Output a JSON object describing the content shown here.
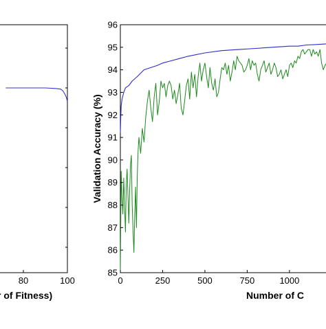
{
  "chart_data": [
    {
      "type": "line",
      "xlabel": "r of Fitness)",
      "x_ticks": [
        80,
        100
      ],
      "xlim": [
        72,
        100
      ],
      "series": [
        {
          "color": "#3333cc",
          "x": [
            72,
            80,
            90,
            95,
            97,
            98,
            99,
            99.5,
            100
          ],
          "y": [
            0.56,
            0.56,
            0.56,
            0.559,
            0.558,
            0.555,
            0.549,
            0.545,
            0.538
          ]
        }
      ]
    },
    {
      "type": "line",
      "ylabel": "Validation Accuracy (%)",
      "xlabel": "Number of C",
      "xlim": [
        0,
        1220
      ],
      "ylim": [
        85,
        96
      ],
      "x_ticks": [
        0,
        250,
        500,
        750,
        1000
      ],
      "x_tick_labels": [
        "0",
        "250",
        "500",
        "750",
        "1000"
      ],
      "y_ticks": [
        85,
        86,
        87,
        88,
        89,
        90,
        91,
        92,
        93,
        94,
        95,
        96
      ],
      "y_tick_labels": [
        "85",
        "86",
        "87",
        "88",
        "89",
        "90",
        "91",
        "92",
        "93",
        "94",
        "95",
        "96"
      ],
      "series": [
        {
          "color": "#2b2bc8",
          "x": [
            0,
            2,
            5,
            10,
            20,
            30,
            50,
            70,
            100,
            140,
            180,
            220,
            250,
            300,
            350,
            400,
            500,
            600,
            700,
            800,
            900,
            1000,
            1050,
            1100,
            1150,
            1220
          ],
          "y": [
            91.2,
            91.8,
            92.4,
            92.7,
            93.0,
            93.2,
            93.3,
            93.5,
            93.7,
            94.0,
            94.1,
            94.2,
            94.3,
            94.4,
            94.5,
            94.6,
            94.75,
            94.85,
            94.9,
            94.95,
            95.0,
            95.05,
            95.05,
            95.1,
            95.12,
            95.15
          ]
        },
        {
          "color": "#1a8a1a",
          "x": [
            0,
            5,
            10,
            15,
            20,
            25,
            30,
            35,
            40,
            45,
            50,
            55,
            60,
            65,
            70,
            75,
            80,
            85,
            90,
            95,
            100,
            105,
            110,
            120,
            130,
            140,
            150,
            160,
            170,
            180,
            190,
            200,
            210,
            220,
            230,
            240,
            250,
            260,
            270,
            280,
            290,
            300,
            310,
            320,
            330,
            340,
            350,
            360,
            370,
            380,
            390,
            400,
            410,
            420,
            430,
            440,
            450,
            460,
            470,
            480,
            490,
            500,
            510,
            520,
            530,
            540,
            550,
            560,
            570,
            580,
            590,
            600,
            610,
            620,
            630,
            640,
            650,
            660,
            670,
            680,
            690,
            700,
            710,
            720,
            730,
            740,
            750,
            760,
            770,
            780,
            790,
            800,
            810,
            820,
            830,
            840,
            850,
            860,
            870,
            880,
            890,
            900,
            910,
            920,
            930,
            940,
            950,
            960,
            970,
            980,
            990,
            1000,
            1010,
            1020,
            1030,
            1040,
            1050,
            1060,
            1070,
            1080,
            1090,
            1100,
            1110,
            1120,
            1130,
            1140,
            1150,
            1160,
            1170,
            1180,
            1190,
            1200,
            1210,
            1220
          ],
          "y": [
            85.0,
            89.5,
            88.2,
            87.6,
            89.2,
            88.0,
            86.8,
            88.9,
            89.6,
            88.4,
            87.2,
            88.6,
            89.8,
            90.2,
            88.0,
            86.9,
            85.9,
            87.5,
            88.8,
            87.0,
            89.3,
            90.4,
            91.0,
            90.3,
            91.4,
            90.8,
            91.9,
            92.6,
            93.1,
            92.3,
            91.7,
            92.8,
            93.4,
            92.0,
            92.6,
            93.5,
            93.2,
            93.4,
            92.8,
            93.3,
            93.5,
            93.3,
            92.7,
            93.1,
            92.5,
            92.9,
            93.4,
            92.3,
            92.0,
            92.6,
            93.3,
            93.6,
            92.7,
            93.9,
            93.2,
            93.8,
            92.8,
            93.7,
            94.3,
            93.5,
            94.0,
            94.3,
            93.7,
            93.2,
            94.1,
            93.4,
            93.1,
            93.6,
            92.8,
            93.0,
            93.6,
            94.1,
            94.0,
            94.3,
            93.8,
            94.2,
            93.5,
            93.9,
            94.4,
            94.0,
            94.6,
            94.4,
            94.3,
            94.2,
            93.9,
            94.0,
            94.2,
            94.5,
            94.0,
            94.4,
            94.2,
            94.3,
            93.8,
            93.5,
            94.0,
            94.2,
            94.4,
            93.9,
            94.1,
            94.3,
            93.8,
            94.0,
            94.3,
            94.1,
            93.7,
            93.8,
            94.0,
            93.6,
            93.8,
            94.0,
            93.7,
            94.2,
            94.3,
            94.1,
            94.4,
            94.3,
            94.6,
            94.5,
            94.8,
            94.9,
            94.7,
            94.8,
            94.9,
            94.9,
            94.6,
            94.9,
            94.7,
            94.8,
            94.6,
            94.9,
            94.3,
            94.0,
            94.2,
            94.3
          ]
        }
      ]
    }
  ],
  "colors": {
    "blue_line": "#2b2bc8",
    "green_line": "#1a8a1a"
  }
}
